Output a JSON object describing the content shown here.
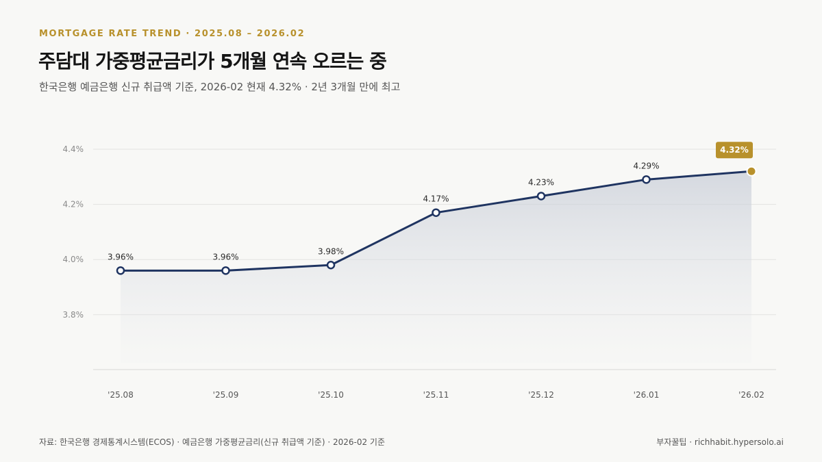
{
  "header": {
    "kicker": "MORTGAGE RATE TREND · 2025.08 – 2026.02",
    "title": "주담대 가중평균금리가 5개월 연속 오르는 중",
    "subtitle": "한국은행 예금은행 신규 취급액 기준, 2026-02 현재 4.32% · 2년 3개월 만에 최고"
  },
  "footer": {
    "source": "자료: 한국은행 경제통계시스템(ECOS) · 예금은행 가중평균금리(신규 취급액 기준) · 2026-02 기준",
    "brand": "부자꿀팁 · richhabit.hypersolo.ai"
  },
  "colors": {
    "accent": "#b8912c",
    "line": "#1f3461",
    "background": "#f8f8f6"
  },
  "chart_data": {
    "type": "line",
    "categories": [
      "'25.08",
      "'25.09",
      "'25.10",
      "'25.11",
      "'25.12",
      "'26.01",
      "'26.02"
    ],
    "values": [
      3.96,
      3.96,
      3.98,
      4.17,
      4.23,
      4.29,
      4.32
    ],
    "value_labels": [
      "3.96%",
      "3.96%",
      "3.98%",
      "4.17%",
      "4.23%",
      "4.29%",
      "4.32%"
    ],
    "highlight_index": 6,
    "y_ticks": [
      3.8,
      4.0,
      4.2,
      4.4
    ],
    "y_tick_labels": [
      "3.8%",
      "4.0%",
      "4.2%",
      "4.4%"
    ],
    "grid": true,
    "area_fill": true
  }
}
